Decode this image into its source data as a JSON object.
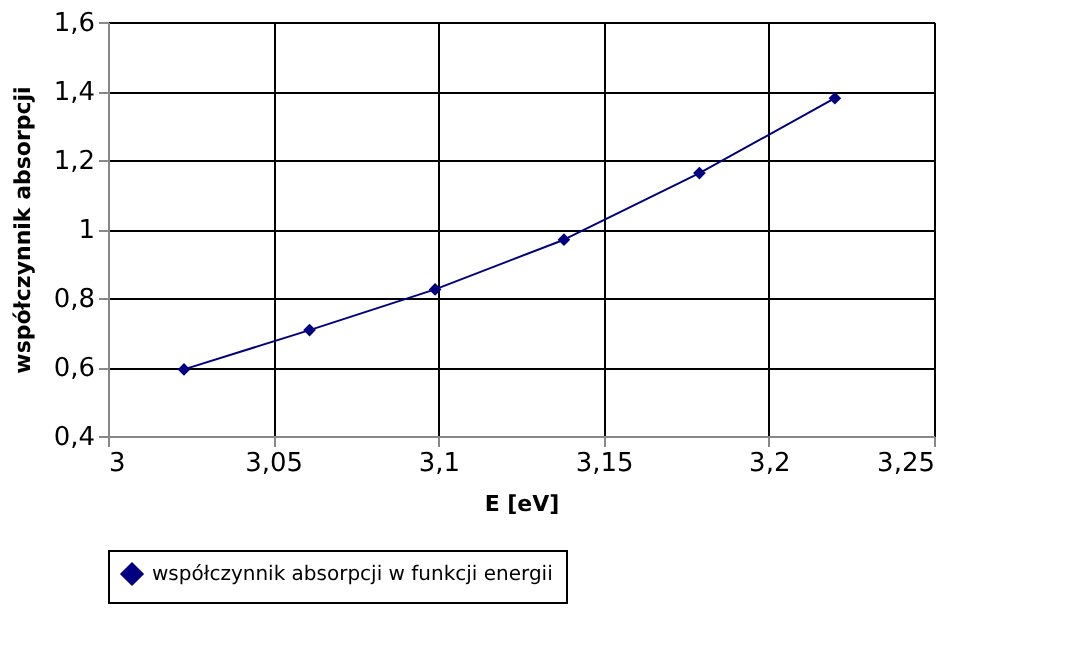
{
  "chart_data": {
    "type": "line",
    "xlabel": "E [eV]",
    "ylabel": "współczynnik absorpcji",
    "x": [
      3.023,
      3.061,
      3.099,
      3.138,
      3.179,
      3.22
    ],
    "series": [
      {
        "name": "współczynnik absorpcji w funkcji energii",
        "color": "#000080",
        "values": [
          0.593,
          0.707,
          0.825,
          0.969,
          1.162,
          1.379
        ]
      }
    ],
    "xlim": [
      3,
      3.25
    ],
    "xticks": [
      3,
      {
        "value": 3.05,
        "label": "3,05"
      },
      {
        "value": 3.1,
        "label": "3,1"
      },
      {
        "value": 3.15,
        "label": "3,15"
      },
      {
        "value": 3.2,
        "label": "3,2"
      },
      {
        "value": 3.25,
        "label": "3,25"
      }
    ],
    "ylim": [
      0.4,
      1.6
    ],
    "yticks": [
      {
        "value": 0.4,
        "label": "0,4"
      },
      {
        "value": 0.6,
        "label": "0,6"
      },
      {
        "value": 0.8,
        "label": "0,8"
      },
      1,
      {
        "value": 1.2,
        "label": "1,2"
      },
      {
        "value": 1.4,
        "label": "1,4"
      },
      {
        "value": 1.6,
        "label": "1,6"
      }
    ],
    "grid": true,
    "legend": "bottom",
    "marker": "diamond",
    "line_style": "solid"
  }
}
